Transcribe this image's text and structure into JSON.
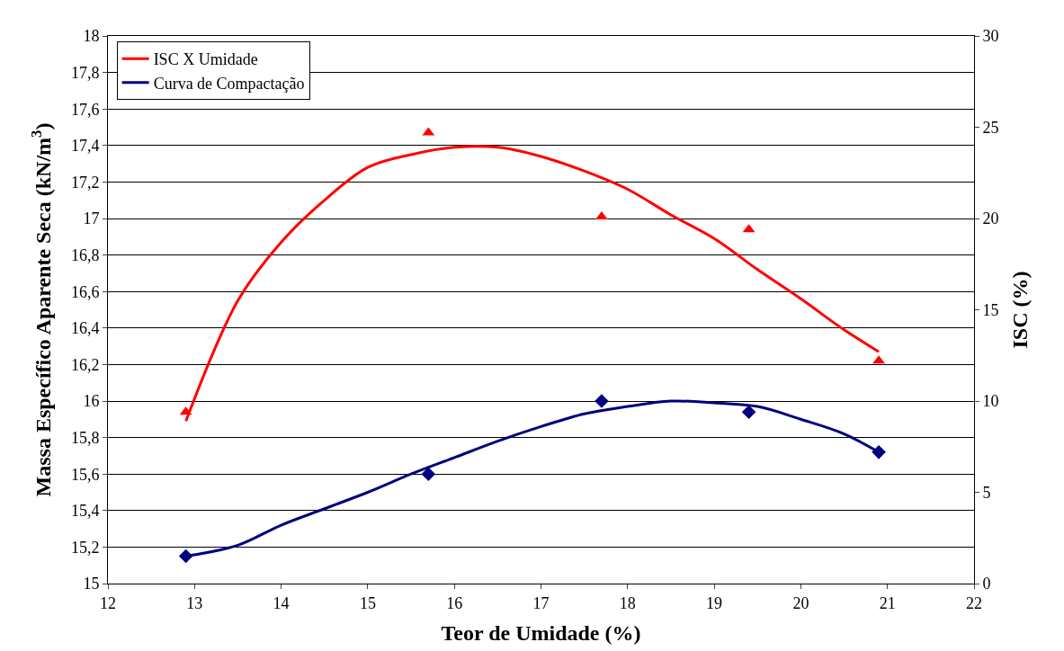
{
  "chart_data": {
    "type": "line",
    "xlabel": "Teor de Umidade (%)",
    "ylabel": "Massa Específico Aparente Seca (kN/m$^{3}$)",
    "y2label": "ISC (%)",
    "xlim": [
      12,
      22
    ],
    "xticks": [
      12,
      13,
      14,
      15,
      16,
      17,
      18,
      19,
      20,
      21,
      22
    ],
    "ylim": [
      15,
      18
    ],
    "yticks": [
      15,
      {
        "value": 15.2,
        "label": "15,2"
      },
      {
        "value": 15.4,
        "label": "15,4"
      },
      {
        "value": 15.6,
        "label": "15,6"
      },
      {
        "value": 15.8,
        "label": "15,8"
      },
      16,
      {
        "value": 16.2,
        "label": "16,2"
      },
      {
        "value": 16.4,
        "label": "16,4"
      },
      {
        "value": 16.6,
        "label": "16,6"
      },
      {
        "value": 16.8,
        "label": "16,8"
      },
      17,
      {
        "value": 17.2,
        "label": "17,2"
      },
      {
        "value": 17.4,
        "label": "17,4"
      },
      {
        "value": 17.6,
        "label": "17,6"
      },
      {
        "value": 17.8,
        "label": "17,8"
      },
      18
    ],
    "y2lim": [
      0,
      30
    ],
    "y2ticks": [
      0,
      5,
      10,
      15,
      20,
      25,
      30
    ],
    "grid": "y",
    "legend": "top left",
    "series": [
      {
        "name": "ISC X Umidade",
        "axis": "y2",
        "color": "#ff0000",
        "marker": "none",
        "x": [
          12.9,
          13.5,
          14,
          14.5,
          15,
          15.5,
          16,
          16.5,
          17,
          17.5,
          18,
          18.5,
          19,
          19.5,
          20,
          20.5,
          20.9
        ],
        "values": [
          8.9,
          15.5,
          18.7,
          21.0,
          22.8,
          23.5,
          23.9,
          23.9,
          23.4,
          22.6,
          21.6,
          20.2,
          18.9,
          17.2,
          15.6,
          13.9,
          12.7
        ]
      },
      {
        "type": "scatter",
        "axis": "y2",
        "color": "#ff0000",
        "marker": "triangle",
        "x": [
          12.9,
          15.7,
          17.7,
          19.4,
          20.9
        ],
        "values": [
          9.4,
          24.7,
          20.1,
          19.4,
          12.2
        ]
      },
      {
        "name": "Curva de Compactação",
        "axis": "y",
        "color": "#000080",
        "marker": "none",
        "x": [
          12.9,
          13.5,
          14,
          14.5,
          15,
          15.5,
          16,
          16.5,
          17,
          17.5,
          18,
          18.5,
          19,
          19.5,
          20,
          20.5,
          20.9
        ],
        "values": [
          15.15,
          15.21,
          15.32,
          15.41,
          15.5,
          15.6,
          15.69,
          15.78,
          15.86,
          15.93,
          15.97,
          16.0,
          15.99,
          15.97,
          15.9,
          15.82,
          15.72
        ]
      },
      {
        "type": "scatter",
        "axis": "y",
        "color": "#000080",
        "marker": "diamond",
        "x": [
          12.9,
          15.7,
          17.7,
          19.4,
          20.9
        ],
        "values": [
          15.15,
          15.6,
          16.0,
          15.94,
          15.72
        ]
      }
    ]
  }
}
